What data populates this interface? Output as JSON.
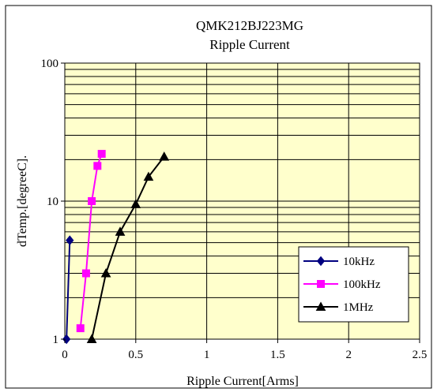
{
  "chart_data": {
    "type": "line",
    "title": "QMK212BJ223MG",
    "subtitle": "Ripple Current",
    "xlabel": "Ripple Current[Arms]",
    "ylabel": "dTemp.[degreeC].",
    "xlim": [
      0,
      2.5
    ],
    "ylim": [
      1,
      100
    ],
    "y_scale": "log",
    "grid": true,
    "legend_position": "bottom-right",
    "x_ticks": [
      "0",
      "0.5",
      "1",
      "1.5",
      "2",
      "2.5"
    ],
    "y_ticks": [
      "1",
      "10",
      "100"
    ],
    "plot_background": "#ffffcc",
    "series": [
      {
        "name": "10kHz",
        "color": "#000080",
        "marker": "diamond",
        "x": [
          0.012,
          0.035
        ],
        "y": [
          1.0,
          5.2
        ]
      },
      {
        "name": "100kHz",
        "color": "#ff00ff",
        "marker": "square",
        "x": [
          0.11,
          0.15,
          0.19,
          0.23,
          0.26
        ],
        "y": [
          1.2,
          3.0,
          10.0,
          18.0,
          22.0
        ]
      },
      {
        "name": "1MHz",
        "color": "#000000",
        "marker": "triangle",
        "x": [
          0.19,
          0.29,
          0.39,
          0.5,
          0.59,
          0.7
        ],
        "y": [
          1.0,
          3.0,
          6.0,
          9.5,
          15.0,
          21.0
        ]
      }
    ]
  }
}
